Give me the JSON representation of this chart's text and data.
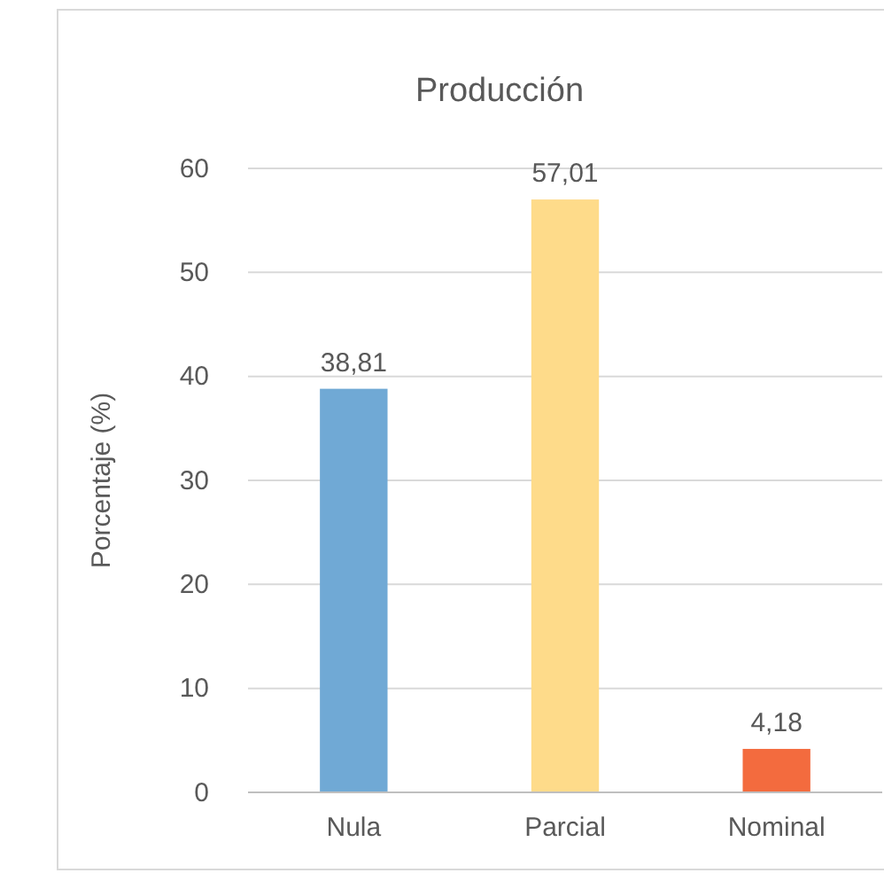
{
  "chart_data": {
    "type": "bar",
    "title": "Producción",
    "ylabel": "Porcentaje (%)",
    "categories": [
      "Nula",
      "Parcial",
      "Nominal"
    ],
    "values": [
      38.81,
      57.01,
      4.18
    ],
    "colors": [
      "#70a9d5",
      "#fedb8a",
      "#f36b3e"
    ],
    "value_labels": [
      "38,81",
      "57,01",
      "4,18"
    ],
    "ylim": [
      0,
      60
    ],
    "yticks": [
      0,
      10,
      20,
      30,
      40,
      50,
      60
    ],
    "grid": "y"
  }
}
